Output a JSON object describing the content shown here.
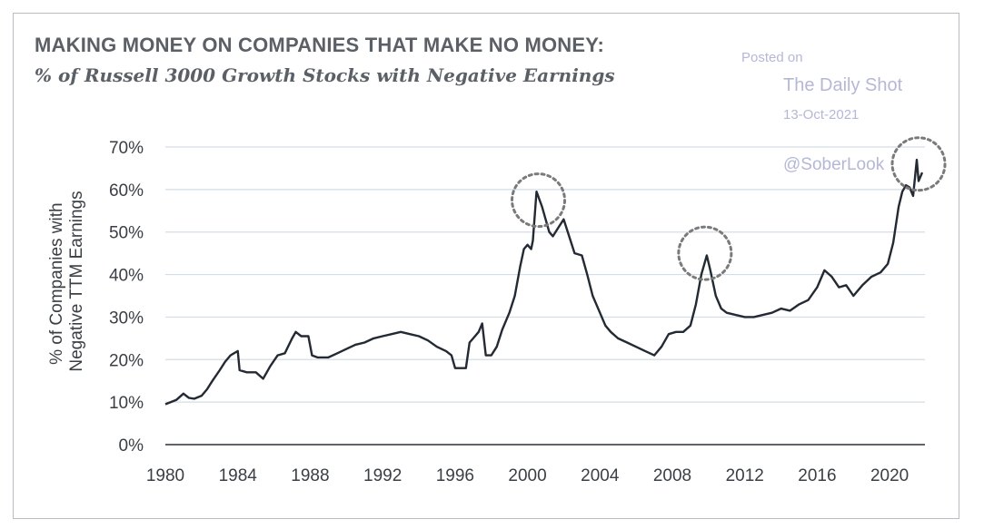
{
  "chart_data": {
    "type": "line",
    "title": "MAKING MONEY ON COMPANIES THAT MAKE NO MONEY:",
    "subtitle": "% of Russell 3000 Growth Stocks with Negative Earnings",
    "ylabel_lines": [
      "% of Companies with",
      "Negative TTM Earnings"
    ],
    "xlabel": "",
    "ylim": [
      0,
      70
    ],
    "xlim": [
      1980,
      2022
    ],
    "yticks": [
      "0%",
      "10%",
      "20%",
      "30%",
      "40%",
      "50%",
      "60%",
      "70%"
    ],
    "xticks": [
      "1980",
      "1984",
      "1988",
      "1992",
      "1996",
      "2000",
      "2004",
      "2008",
      "2012",
      "2016",
      "2020"
    ],
    "grid": "horizontal",
    "line_color": "#232a33",
    "highlight_color": "#7a7a7a",
    "series": [
      {
        "x": [
          1980.0,
          1980.3,
          1980.6,
          1981.0,
          1981.3,
          1981.6,
          1982.0,
          1982.3,
          1982.6,
          1983.0,
          1983.3,
          1983.6,
          1984.0,
          1984.1,
          1984.5,
          1985.0,
          1985.4,
          1985.8,
          1986.2,
          1986.6,
          1987.0,
          1987.2,
          1987.5,
          1987.9,
          1988.1,
          1988.4,
          1988.7,
          1989.0,
          1989.5,
          1990.0,
          1990.5,
          1991.0,
          1991.5,
          1992.0,
          1992.5,
          1993.0,
          1993.5,
          1994.0,
          1994.5,
          1995.0,
          1995.5,
          1995.8,
          1996.0,
          1996.4,
          1996.6,
          1996.8,
          1997.0,
          1997.3,
          1997.5,
          1997.7,
          1998.0,
          1998.3,
          1998.6,
          1999.0,
          1999.3,
          1999.6,
          1999.8,
          2000.0,
          2000.2,
          2000.3,
          2000.5,
          2000.8,
          2001.0,
          2001.2,
          2001.4,
          2001.7,
          2002.0,
          2002.3,
          2002.6,
          2003.0,
          2003.3,
          2003.6,
          2004.0,
          2004.3,
          2004.6,
          2005.0,
          2005.5,
          2006.0,
          2006.5,
          2007.0,
          2007.4,
          2007.8,
          2008.2,
          2008.6,
          2009.0,
          2009.3,
          2009.6,
          2009.9,
          2010.1,
          2010.4,
          2010.7,
          2011.0,
          2011.5,
          2012.0,
          2012.5,
          2013.0,
          2013.5,
          2014.0,
          2014.5,
          2015.0,
          2015.5,
          2016.0,
          2016.4,
          2016.8,
          2017.2,
          2017.6,
          2018.0,
          2018.5,
          2019.0,
          2019.5,
          2019.9,
          2020.2,
          2020.5,
          2020.7,
          2020.9,
          2021.1,
          2021.3,
          2021.5,
          2021.6,
          2021.8
        ],
        "y": [
          9.5,
          10.0,
          10.5,
          12.0,
          11.0,
          10.8,
          11.5,
          13.0,
          15.0,
          17.5,
          19.5,
          21.0,
          22.0,
          17.5,
          17.0,
          17.0,
          15.5,
          18.5,
          21.0,
          21.5,
          25.0,
          26.5,
          25.5,
          25.5,
          21.0,
          20.5,
          20.5,
          20.5,
          21.5,
          22.5,
          23.5,
          24.0,
          25.0,
          25.5,
          26.0,
          26.5,
          26.0,
          25.5,
          24.5,
          23.0,
          22.0,
          21.0,
          18.0,
          18.0,
          18.0,
          24.0,
          25.0,
          26.5,
          28.5,
          21.0,
          21.0,
          23.0,
          27.0,
          31.0,
          35.0,
          42.0,
          46.0,
          47.0,
          46.0,
          48.0,
          59.5,
          56.0,
          53.0,
          50.0,
          49.0,
          51.0,
          53.0,
          49.0,
          45.0,
          44.5,
          40.0,
          35.0,
          31.0,
          28.0,
          26.5,
          25.0,
          24.0,
          23.0,
          22.0,
          21.0,
          23.0,
          26.0,
          26.5,
          26.5,
          28.0,
          33.0,
          40.0,
          44.5,
          41.0,
          35.0,
          32.0,
          31.0,
          30.5,
          30.0,
          30.0,
          30.5,
          31.0,
          32.0,
          31.5,
          33.0,
          34.0,
          37.0,
          41.0,
          39.5,
          37.0,
          37.5,
          35.0,
          37.5,
          39.5,
          40.5,
          42.5,
          47.5,
          56.0,
          59.5,
          61.0,
          60.5,
          58.5,
          67.0,
          62.0,
          64.0
        ]
      }
    ],
    "highlights": [
      {
        "x": 2000.6,
        "y": 57.5
      },
      {
        "x": 2009.8,
        "y": 45.0
      },
      {
        "x": 2021.6,
        "y": 66.0
      }
    ]
  },
  "watermark": {
    "posted": "Posted on",
    "source": "The Daily Shot",
    "date": "13-Oct-2021",
    "handle": "@SoberLook"
  }
}
